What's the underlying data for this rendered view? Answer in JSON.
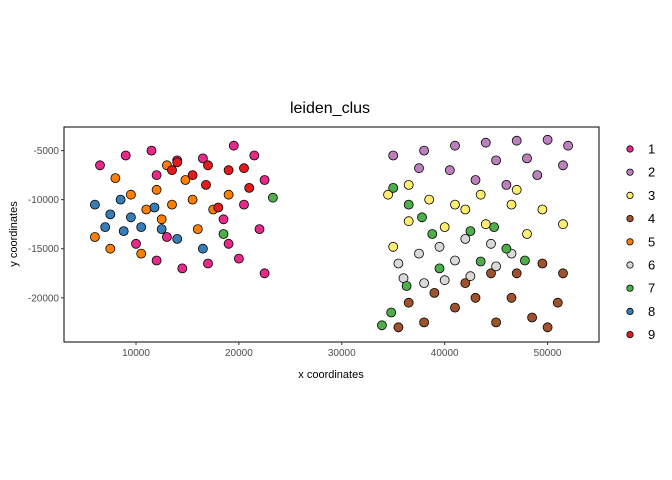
{
  "chart_data": {
    "type": "scatter",
    "title": "leiden_clus",
    "xlabel": "x coordinates",
    "ylabel": "y coordinates",
    "xlim": [
      3000,
      55000
    ],
    "ylim": [
      -24500,
      -2600
    ],
    "x_ticks": [
      10000,
      20000,
      30000,
      40000,
      50000
    ],
    "x_tick_labels": [
      "10000",
      "20000",
      "30000",
      "40000",
      "50000"
    ],
    "y_ticks": [
      -5000,
      -10000,
      -15000,
      -20000
    ],
    "y_tick_labels": [
      "-5000",
      "-10000",
      "-15000",
      "-20000"
    ],
    "grid": false,
    "legend_position": "right",
    "legend": [
      {
        "label": "1",
        "color": "#E7298A"
      },
      {
        "label": "2",
        "color": "#BC80BD"
      },
      {
        "label": "3",
        "color": "#FFED6F"
      },
      {
        "label": "4",
        "color": "#A0522D"
      },
      {
        "label": "5",
        "color": "#FF7F00"
      },
      {
        "label": "6",
        "color": "#D9D9D9"
      },
      {
        "label": "7",
        "color": "#4DAF4A"
      },
      {
        "label": "8",
        "color": "#377EB8"
      },
      {
        "label": "9",
        "color": "#E41A1C"
      }
    ],
    "series": [
      {
        "name": "1",
        "points": [
          [
            6500,
            -6500
          ],
          [
            9000,
            -5500
          ],
          [
            11500,
            -5000
          ],
          [
            12000,
            -7500
          ],
          [
            14000,
            -6000
          ],
          [
            16500,
            -5800
          ],
          [
            19500,
            -4500
          ],
          [
            21500,
            -5500
          ],
          [
            22500,
            -8000
          ],
          [
            20500,
            -10500
          ],
          [
            22000,
            -13000
          ],
          [
            20000,
            -16000
          ],
          [
            22500,
            -17500
          ],
          [
            19000,
            -14500
          ],
          [
            17000,
            -16500
          ],
          [
            14500,
            -17000
          ],
          [
            12000,
            -16200
          ],
          [
            10000,
            -14500
          ],
          [
            13000,
            -13800
          ],
          [
            18500,
            -12000
          ]
        ]
      },
      {
        "name": "2",
        "points": [
          [
            35000,
            -5500
          ],
          [
            38000,
            -5000
          ],
          [
            41000,
            -4500
          ],
          [
            44000,
            -4200
          ],
          [
            47000,
            -4000
          ],
          [
            50000,
            -3900
          ],
          [
            52000,
            -4500
          ],
          [
            51500,
            -6500
          ],
          [
            49000,
            -7500
          ],
          [
            46000,
            -8500
          ],
          [
            43000,
            -8000
          ],
          [
            40500,
            -7000
          ],
          [
            37500,
            -6800
          ],
          [
            45000,
            -6000
          ],
          [
            48000,
            -5800
          ]
        ]
      },
      {
        "name": "3",
        "points": [
          [
            34500,
            -9500
          ],
          [
            36500,
            -8500
          ],
          [
            38500,
            -10000
          ],
          [
            41000,
            -10500
          ],
          [
            43500,
            -9500
          ],
          [
            46500,
            -10500
          ],
          [
            49500,
            -11000
          ],
          [
            51500,
            -12500
          ],
          [
            48000,
            -13500
          ],
          [
            44000,
            -12500
          ],
          [
            40000,
            -12800
          ],
          [
            36500,
            -12200
          ],
          [
            35000,
            -14800
          ],
          [
            42000,
            -11000
          ],
          [
            47000,
            -9000
          ]
        ]
      },
      {
        "name": "4",
        "points": [
          [
            36500,
            -20500
          ],
          [
            39000,
            -19500
          ],
          [
            42000,
            -18500
          ],
          [
            44500,
            -17500
          ],
          [
            47000,
            -17500
          ],
          [
            49500,
            -16500
          ],
          [
            51500,
            -17500
          ],
          [
            51000,
            -20500
          ],
          [
            48500,
            -22000
          ],
          [
            45000,
            -22500
          ],
          [
            41000,
            -21000
          ],
          [
            38000,
            -22500
          ],
          [
            35500,
            -23000
          ],
          [
            43000,
            -20000
          ],
          [
            50000,
            -23000
          ],
          [
            46500,
            -20000
          ]
        ]
      },
      {
        "name": "5",
        "points": [
          [
            8000,
            -7800
          ],
          [
            9500,
            -9500
          ],
          [
            12000,
            -9000
          ],
          [
            13500,
            -10500
          ],
          [
            15500,
            -10000
          ],
          [
            14800,
            -8000
          ],
          [
            17500,
            -11000
          ],
          [
            19000,
            -9500
          ],
          [
            16000,
            -13000
          ],
          [
            12500,
            -12000
          ],
          [
            10500,
            -15500
          ],
          [
            7500,
            -15000
          ],
          [
            6000,
            -13800
          ],
          [
            11000,
            -11000
          ],
          [
            13000,
            -6500
          ]
        ]
      },
      {
        "name": "6",
        "points": [
          [
            35500,
            -16500
          ],
          [
            37500,
            -15500
          ],
          [
            39500,
            -14800
          ],
          [
            42000,
            -14000
          ],
          [
            44500,
            -14500
          ],
          [
            46500,
            -15500
          ],
          [
            45000,
            -16800
          ],
          [
            42500,
            -17800
          ],
          [
            40000,
            -18200
          ],
          [
            38000,
            -18500
          ],
          [
            36000,
            -18000
          ],
          [
            41000,
            -16200
          ]
        ]
      },
      {
        "name": "7",
        "points": [
          [
            35000,
            -8800
          ],
          [
            36500,
            -10500
          ],
          [
            37800,
            -11800
          ],
          [
            38800,
            -13500
          ],
          [
            42500,
            -13200
          ],
          [
            44800,
            -12800
          ],
          [
            46000,
            -15000
          ],
          [
            47800,
            -16200
          ],
          [
            43500,
            -16300
          ],
          [
            39500,
            -17000
          ],
          [
            36300,
            -18800
          ],
          [
            34800,
            -21500
          ],
          [
            33900,
            -22800
          ],
          [
            23300,
            -9800
          ],
          [
            18500,
            -13500
          ]
        ]
      },
      {
        "name": "8",
        "points": [
          [
            6000,
            -10500
          ],
          [
            7500,
            -11500
          ],
          [
            8500,
            -10000
          ],
          [
            9500,
            -11800
          ],
          [
            10500,
            -12800
          ],
          [
            8800,
            -13200
          ],
          [
            7000,
            -12800
          ],
          [
            11800,
            -10800
          ],
          [
            12500,
            -13000
          ],
          [
            14000,
            -14000
          ],
          [
            16500,
            -15000
          ]
        ]
      },
      {
        "name": "9",
        "points": [
          [
            14000,
            -6200
          ],
          [
            15500,
            -7500
          ],
          [
            17000,
            -6500
          ],
          [
            19000,
            -7000
          ],
          [
            20500,
            -6800
          ],
          [
            16800,
            -8500
          ],
          [
            18000,
            -10800
          ],
          [
            21000,
            -8800
          ],
          [
            13500,
            -7000
          ]
        ]
      }
    ]
  }
}
